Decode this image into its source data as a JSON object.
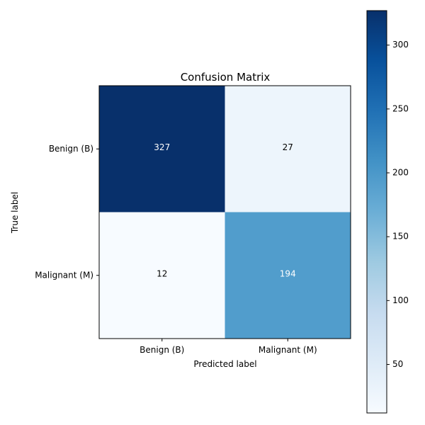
{
  "chart_data": {
    "type": "heatmap",
    "title": "Confusion Matrix",
    "xlabel": "Predicted label",
    "ylabel": "True label",
    "x_categories": [
      "Benign (B)",
      "Malignant (M)"
    ],
    "y_categories": [
      "Benign (B)",
      "Malignant (M)"
    ],
    "values": [
      [
        327,
        27
      ],
      [
        12,
        194
      ]
    ],
    "colormap": "Blues",
    "colorbar": {
      "range": [
        12,
        327
      ],
      "ticks": [
        50,
        100,
        150,
        200,
        250,
        300
      ],
      "tick_labels": [
        "50",
        "100",
        "150",
        "200",
        "250",
        "300"
      ]
    },
    "colors": {
      "text_on_dark": "#ffffff",
      "text_on_light": "#000000"
    }
  }
}
